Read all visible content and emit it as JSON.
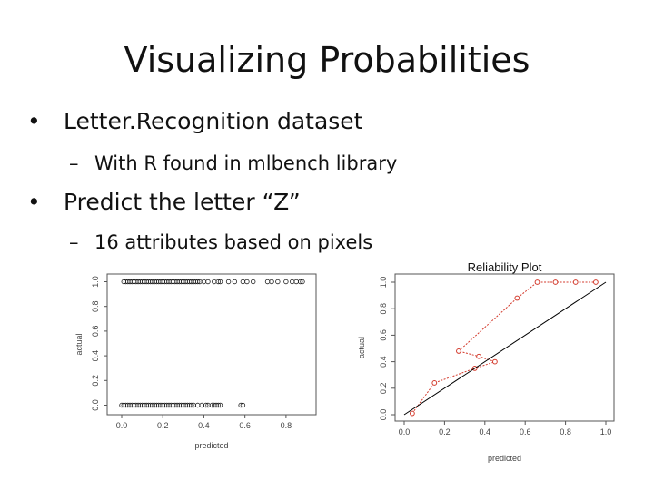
{
  "slide": {
    "title": "Visualizing Probabilities",
    "bullets": [
      {
        "text": "Letter.Recognition dataset",
        "sub": "With R found in mlbench library"
      },
      {
        "text": "Predict the letter “Z”",
        "sub": "16 attributes based on pixels"
      }
    ],
    "bullet_glyph": "•",
    "sub_glyph": "–"
  },
  "chart_data": [
    {
      "type": "scatter",
      "title": "",
      "xlabel": "predicted",
      "ylabel": "actual",
      "xlim": [
        0,
        0.9
      ],
      "ylim": [
        0,
        1
      ],
      "xticks": [
        "0.0",
        "0.2",
        "0.4",
        "0.6",
        "0.8"
      ],
      "yticks": [
        "0.0",
        "0.2",
        "0.4",
        "0.6",
        "0.8",
        "1.0"
      ],
      "grid": false,
      "series": [
        {
          "values": [
            [
              0.01,
              1
            ],
            [
              0.02,
              1
            ],
            [
              0.03,
              1
            ],
            [
              0.04,
              1
            ],
            [
              0.05,
              1
            ],
            [
              0.06,
              1
            ],
            [
              0.07,
              1
            ],
            [
              0.08,
              1
            ],
            [
              0.09,
              1
            ],
            [
              0.1,
              1
            ],
            [
              0.11,
              1
            ],
            [
              0.12,
              1
            ],
            [
              0.13,
              1
            ],
            [
              0.14,
              1
            ],
            [
              0.15,
              1
            ],
            [
              0.16,
              1
            ],
            [
              0.17,
              1
            ],
            [
              0.18,
              1
            ],
            [
              0.19,
              1
            ],
            [
              0.2,
              1
            ],
            [
              0.21,
              1
            ],
            [
              0.22,
              1
            ],
            [
              0.23,
              1
            ],
            [
              0.24,
              1
            ],
            [
              0.25,
              1
            ],
            [
              0.26,
              1
            ],
            [
              0.27,
              1
            ],
            [
              0.28,
              1
            ],
            [
              0.29,
              1
            ],
            [
              0.3,
              1
            ],
            [
              0.31,
              1
            ],
            [
              0.32,
              1
            ],
            [
              0.33,
              1
            ],
            [
              0.34,
              1
            ],
            [
              0.35,
              1
            ],
            [
              0.36,
              1
            ],
            [
              0.37,
              1
            ],
            [
              0.38,
              1
            ],
            [
              0.4,
              1
            ],
            [
              0.42,
              1
            ],
            [
              0.45,
              1
            ],
            [
              0.47,
              1
            ],
            [
              0.48,
              1
            ],
            [
              0.52,
              1
            ],
            [
              0.55,
              1
            ],
            [
              0.59,
              1
            ],
            [
              0.61,
              1
            ],
            [
              0.64,
              1
            ],
            [
              0.71,
              1
            ],
            [
              0.73,
              1
            ],
            [
              0.76,
              1
            ],
            [
              0.8,
              1
            ],
            [
              0.83,
              1
            ],
            [
              0.85,
              1
            ],
            [
              0.87,
              1
            ],
            [
              0.88,
              1
            ],
            [
              0.0,
              0
            ],
            [
              0.01,
              0
            ],
            [
              0.02,
              0
            ],
            [
              0.03,
              0
            ],
            [
              0.04,
              0
            ],
            [
              0.05,
              0
            ],
            [
              0.06,
              0
            ],
            [
              0.07,
              0
            ],
            [
              0.08,
              0
            ],
            [
              0.09,
              0
            ],
            [
              0.1,
              0
            ],
            [
              0.11,
              0
            ],
            [
              0.12,
              0
            ],
            [
              0.13,
              0
            ],
            [
              0.14,
              0
            ],
            [
              0.15,
              0
            ],
            [
              0.16,
              0
            ],
            [
              0.17,
              0
            ],
            [
              0.18,
              0
            ],
            [
              0.19,
              0
            ],
            [
              0.2,
              0
            ],
            [
              0.21,
              0
            ],
            [
              0.22,
              0
            ],
            [
              0.23,
              0
            ],
            [
              0.24,
              0
            ],
            [
              0.25,
              0
            ],
            [
              0.26,
              0
            ],
            [
              0.27,
              0
            ],
            [
              0.28,
              0
            ],
            [
              0.29,
              0
            ],
            [
              0.3,
              0
            ],
            [
              0.31,
              0
            ],
            [
              0.32,
              0
            ],
            [
              0.33,
              0
            ],
            [
              0.34,
              0
            ],
            [
              0.35,
              0
            ],
            [
              0.37,
              0
            ],
            [
              0.39,
              0
            ],
            [
              0.41,
              0
            ],
            [
              0.42,
              0
            ],
            [
              0.44,
              0
            ],
            [
              0.45,
              0
            ],
            [
              0.46,
              0
            ],
            [
              0.47,
              0
            ],
            [
              0.48,
              0
            ],
            [
              0.58,
              0
            ],
            [
              0.59,
              0
            ]
          ]
        }
      ]
    },
    {
      "type": "line",
      "title": "Reliability Plot",
      "xlabel": "predicted",
      "ylabel": "actual",
      "xlim": [
        0,
        1
      ],
      "ylim": [
        0,
        1
      ],
      "xticks": [
        "0.0",
        "0.2",
        "0.4",
        "0.6",
        "0.8",
        "1.0"
      ],
      "yticks": [
        "0.0",
        "0.2",
        "0.4",
        "0.6",
        "0.8",
        "1.0"
      ],
      "grid": false,
      "series": [
        {
          "color": "#d33a2c",
          "values": [
            [
              0.04,
              0.01
            ],
            [
              0.15,
              0.24
            ],
            [
              0.35,
              0.35
            ],
            [
              0.45,
              0.4
            ],
            [
              0.37,
              0.44
            ],
            [
              0.27,
              0.48
            ],
            [
              0.56,
              0.88
            ],
            [
              0.66,
              1.0
            ],
            [
              0.75,
              1.0
            ],
            [
              0.85,
              1.0
            ],
            [
              0.95,
              1.0
            ]
          ]
        },
        {
          "color": "#000000",
          "values": [
            [
              0.0,
              0.0
            ],
            [
              1.0,
              1.0
            ]
          ]
        }
      ]
    }
  ]
}
